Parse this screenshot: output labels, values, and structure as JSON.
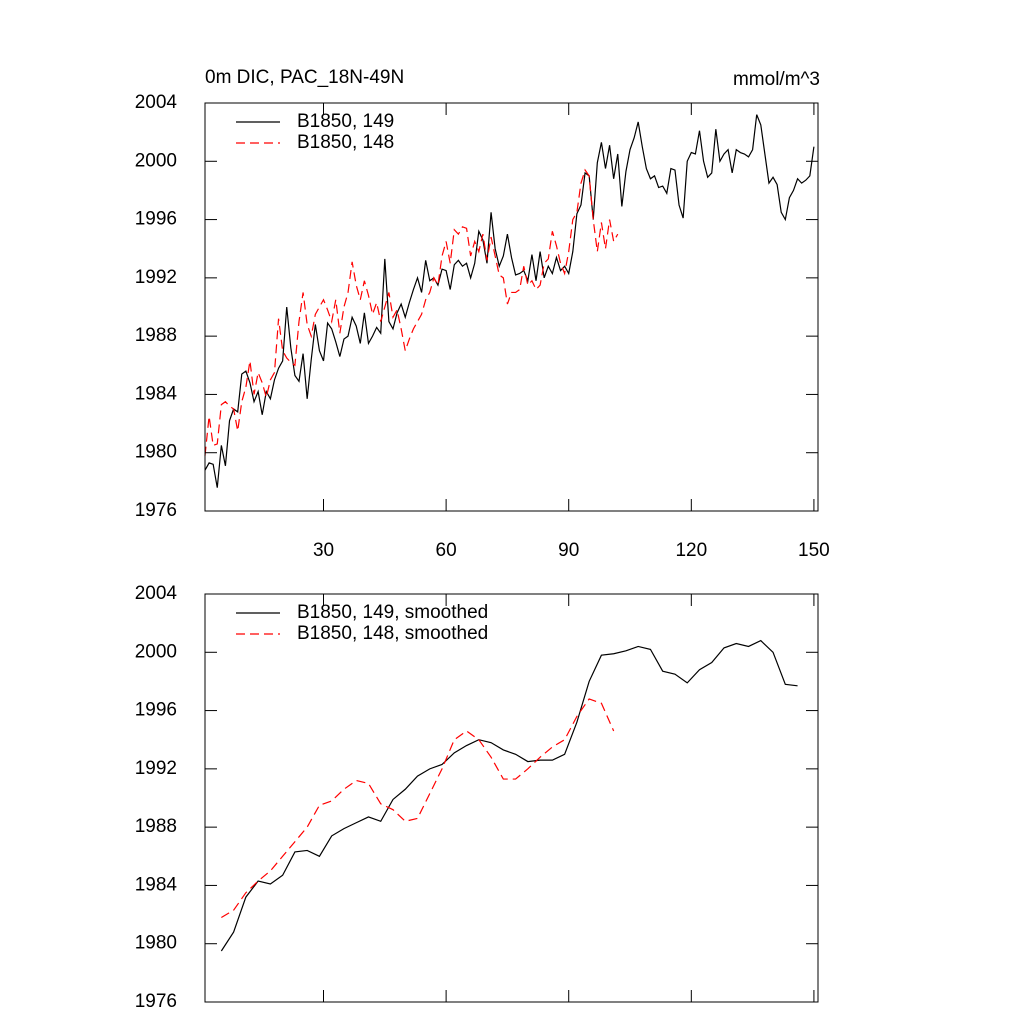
{
  "chart_data": [
    {
      "type": "line",
      "title": "0m DIC, PAC_18N-49N",
      "units": "mmol/m^3",
      "x": [
        1,
        2,
        3,
        4,
        5,
        6,
        7,
        8,
        9,
        10,
        11,
        12,
        13,
        14,
        15,
        16,
        17,
        18,
        19,
        20,
        21,
        22,
        23,
        24,
        25,
        26,
        27,
        28,
        29,
        30,
        31,
        32,
        33,
        34,
        35,
        36,
        37,
        38,
        39,
        40,
        41,
        42,
        43,
        44,
        45,
        46,
        47,
        48,
        49,
        50,
        51,
        52,
        53,
        54,
        55,
        56,
        57,
        58,
        59,
        60,
        61,
        62,
        63,
        64,
        65,
        66,
        67,
        68,
        69,
        70,
        71,
        72,
        73,
        74,
        75,
        76,
        77,
        78,
        79,
        80,
        81,
        82,
        83,
        84,
        85,
        86,
        87,
        88,
        89,
        90,
        91,
        92,
        93,
        94,
        95,
        96,
        97,
        98,
        99,
        100,
        101,
        102,
        103,
        104,
        105,
        106,
        107,
        108,
        109,
        110,
        111,
        112,
        113,
        114,
        115,
        116,
        117,
        118,
        119,
        120,
        121,
        122,
        123,
        124,
        125,
        126,
        127,
        128,
        129,
        130,
        131,
        132,
        133,
        134,
        135,
        136,
        137,
        138,
        139,
        140,
        141,
        142,
        143,
        144,
        145,
        146,
        147,
        148,
        149,
        150
      ],
      "series": [
        {
          "name": "B1850, 149",
          "color": "#000000",
          "dash": false,
          "values": [
            1978.8,
            1979.3,
            1979.2,
            1977.6,
            1980.5,
            1979.1,
            1982.2,
            1983.0,
            1982.8,
            1985.4,
            1985.6,
            1984.8,
            1983.5,
            1984.2,
            1982.6,
            1984.2,
            1983.7,
            1985.0,
            1985.8,
            1986.3,
            1990.0,
            1987.2,
            1985.3,
            1984.9,
            1986.8,
            1983.7,
            1986.4,
            1988.8,
            1987.0,
            1986.3,
            1988.9,
            1988.5,
            1987.6,
            1986.6,
            1987.8,
            1988.0,
            1989.3,
            1988.7,
            1987.5,
            1989.6,
            1987.5,
            1988.0,
            1988.6,
            1988.2,
            1993.3,
            1989.0,
            1988.5,
            1989.6,
            1990.2,
            1989.3,
            1990.3,
            1991.2,
            1992.0,
            1991.0,
            1993.2,
            1991.8,
            1992.0,
            1991.5,
            1992.6,
            1992.5,
            1991.2,
            1992.9,
            1993.2,
            1992.8,
            1993.0,
            1992.0,
            1993.0,
            1995.2,
            1994.6,
            1993.0,
            1996.5,
            1994.0,
            1992.8,
            1993.5,
            1995.0,
            1993.4,
            1992.2,
            1992.3,
            1992.5,
            1991.8,
            1993.6,
            1991.8,
            1993.8,
            1992.0,
            1992.8,
            1992.3,
            1993.4,
            1992.5,
            1992.8,
            1992.3,
            1993.8,
            1996.4,
            1997.0,
            1999.2,
            1999.0,
            1996.0,
            1999.9,
            2001.3,
            1999.5,
            2001.1,
            1998.8,
            2000.5,
            1996.9,
            1999.3,
            2000.8,
            2001.6,
            2002.7,
            2001.0,
            1999.5,
            1998.8,
            1999.0,
            1998.2,
            1998.3,
            1997.8,
            1999.5,
            1999.4,
            1997.0,
            1996.1,
            2000.0,
            2000.6,
            2000.5,
            2002.1,
            2000.0,
            1998.9,
            1999.2,
            2002.2,
            2000.0,
            2000.5,
            2000.8,
            1999.2,
            2000.8,
            2000.6,
            2000.5,
            2000.3,
            2000.8,
            2003.2,
            2002.5,
            2000.5,
            1998.5,
            1998.9,
            1998.4,
            1996.5,
            1996.0,
            1997.5,
            1998.0,
            1998.8,
            1998.5,
            1998.7,
            1999.0,
            2001.0
          ]
        },
        {
          "name": "B1850, 148",
          "color": "#ff0000",
          "dash": true,
          "values": [
            1979.8,
            1982.5,
            1980.5,
            1980.6,
            1983.3,
            1983.5,
            1983.2,
            1983.0,
            1981.5,
            1983.5,
            1984.5,
            1986.3,
            1984.0,
            1985.5,
            1984.8,
            1983.8,
            1985.0,
            1985.5,
            1989.2,
            1987.0,
            1986.5,
            1986.2,
            1986.0,
            1989.0,
            1991.0,
            1988.8,
            1988.0,
            1989.5,
            1990.0,
            1990.5,
            1989.8,
            1989.0,
            1990.5,
            1988.2,
            1990.0,
            1991.0,
            1993.1,
            1991.5,
            1990.5,
            1991.8,
            1990.8,
            1989.5,
            1990.3,
            1989.0,
            1990.0,
            1991.0,
            1989.3,
            1989.8,
            1988.5,
            1987.0,
            1987.8,
            1988.5,
            1989.0,
            1989.5,
            1990.5,
            1991.0,
            1992.0,
            1991.5,
            1993.5,
            1994.5,
            1993.0,
            1995.3,
            1995.0,
            1995.5,
            1995.4,
            1993.5,
            1994.5,
            1993.8,
            1995.0,
            1993.2,
            1994.8,
            1993.5,
            1992.2,
            1992.0,
            1990.2,
            1991.0,
            1991.0,
            1991.2,
            1992.8,
            1991.5,
            1991.8,
            1991.2,
            1991.5,
            1993.0,
            1993.3,
            1995.2,
            1994.2,
            1993.0,
            1992.3,
            1993.8,
            1996.0,
            1996.5,
            1998.5,
            1999.4,
            1999.0,
            1996.0,
            1993.8,
            1995.8,
            1994.0,
            1996.0,
            1994.5,
            1995.0,
            null,
            null,
            null,
            null,
            null,
            null,
            null,
            null,
            null,
            null,
            null,
            null,
            null,
            null,
            null,
            null,
            null,
            null,
            null,
            null,
            null,
            null,
            null,
            null,
            null,
            null,
            null,
            null,
            null,
            null,
            null,
            null,
            null,
            null,
            null,
            null,
            null,
            null,
            null,
            null,
            null,
            null,
            null,
            null,
            null,
            null,
            null,
            null
          ]
        }
      ],
      "xlim": [
        1,
        151
      ],
      "ylim": [
        1976,
        2004
      ],
      "xticks": [
        30,
        60,
        90,
        120,
        150
      ],
      "yticks": [
        1976,
        1980,
        1984,
        1988,
        1992,
        1996,
        2000,
        2004
      ]
    },
    {
      "type": "line",
      "x": [
        5,
        8,
        11,
        14,
        17,
        20,
        23,
        26,
        29,
        32,
        35,
        38,
        41,
        44,
        47,
        50,
        53,
        56,
        59,
        62,
        65,
        68,
        71,
        74,
        77,
        80,
        83,
        86,
        89,
        92,
        95,
        98,
        101,
        104,
        107,
        110,
        113,
        116,
        119,
        122,
        125,
        128,
        131,
        134,
        137,
        140,
        143,
        146
      ],
      "series": [
        {
          "name": "B1850, 149, smoothed",
          "color": "#000000",
          "dash": false,
          "values": [
            1979.5,
            1980.8,
            1983.2,
            1984.3,
            1984.1,
            1984.7,
            1986.3,
            1986.4,
            1986.0,
            1987.4,
            1987.9,
            1988.3,
            1988.7,
            1988.4,
            1989.9,
            1990.6,
            1991.5,
            1992.0,
            1992.3,
            1993.1,
            1993.6,
            1994.0,
            1993.8,
            1993.3,
            1993.0,
            1992.5,
            1992.6,
            1992.6,
            1993.0,
            1995.2,
            1998.0,
            1999.8,
            1999.9,
            2000.1,
            2000.4,
            2000.2,
            1998.7,
            1998.5,
            1997.9,
            1998.8,
            1999.3,
            2000.3,
            2000.6,
            2000.4,
            2000.8,
            2000.0,
            1997.8,
            1997.7
          ]
        },
        {
          "name": "B1850, 148, smoothed",
          "color": "#ff0000",
          "dash": true,
          "values": [
            1981.8,
            1982.3,
            1983.5,
            1984.3,
            1985.0,
            1986.0,
            1987.0,
            1988.0,
            1989.5,
            1989.8,
            1990.6,
            1991.2,
            1991.0,
            1989.6,
            1989.2,
            1988.4,
            1988.6,
            1990.3,
            1992.0,
            1994.0,
            1994.6,
            1994.0,
            1992.8,
            1991.3,
            1991.3,
            1992.0,
            1992.8,
            1993.5,
            1994.0,
            1995.6,
            1996.8,
            1996.5,
            1994.6,
            null,
            null,
            null,
            null,
            null,
            null,
            null,
            null,
            null,
            null,
            null,
            null,
            null,
            null,
            null
          ]
        }
      ],
      "xlim": [
        1,
        151
      ],
      "ylim": [
        1976,
        2004
      ],
      "xticks": [
        30,
        60,
        90,
        120,
        150
      ],
      "yticks": [
        1976,
        1980,
        1984,
        1988,
        1992,
        1996,
        2000,
        2004
      ]
    }
  ]
}
